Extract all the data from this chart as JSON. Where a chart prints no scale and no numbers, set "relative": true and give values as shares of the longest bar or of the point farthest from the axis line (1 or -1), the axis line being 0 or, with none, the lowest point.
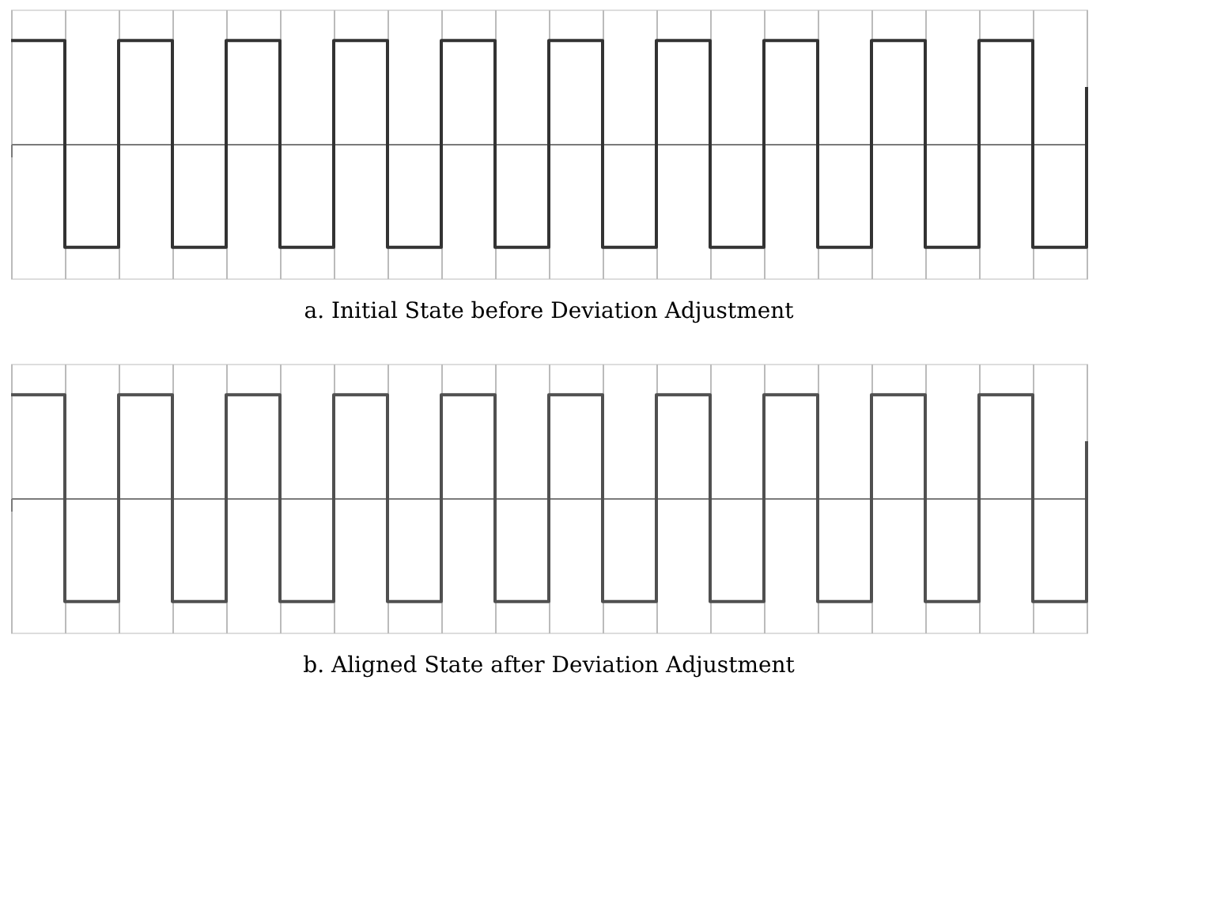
{
  "chart_data": [
    {
      "type": "step",
      "title": "a.  Initial State before Deviation Adjustment",
      "relative": true,
      "grid": "x",
      "marker": "none",
      "line_style": "solid",
      "legend": false,
      "categories": [
        null,
        null,
        null,
        null,
        null,
        null,
        null,
        null,
        null,
        null,
        null,
        null,
        null,
        null,
        null,
        null,
        null,
        null,
        null,
        null,
        null
      ],
      "series": [
        {
          "color": "#333333",
          "values": [
            1,
            -1,
            1,
            -1,
            1,
            -1,
            1,
            -1,
            1,
            -1,
            1,
            -1,
            1,
            -1,
            1,
            -1,
            1,
            -1,
            1,
            -1,
            0.55
          ]
        }
      ]
    },
    {
      "type": "step",
      "title": "b.  Aligned State after Deviation Adjustment",
      "relative": true,
      "grid": "x",
      "marker": "none",
      "line_style": "solid",
      "legend": false,
      "categories": [
        null,
        null,
        null,
        null,
        null,
        null,
        null,
        null,
        null,
        null,
        null,
        null,
        null,
        null,
        null,
        null,
        null,
        null,
        null,
        null,
        null
      ],
      "series": [
        {
          "color": "#505050",
          "values": [
            1,
            -1,
            1,
            -1,
            1,
            -1,
            1,
            -1,
            1,
            -1,
            1,
            -1,
            1,
            -1,
            1,
            -1,
            1,
            -1,
            1,
            -1,
            0.55
          ]
        }
      ]
    }
  ]
}
